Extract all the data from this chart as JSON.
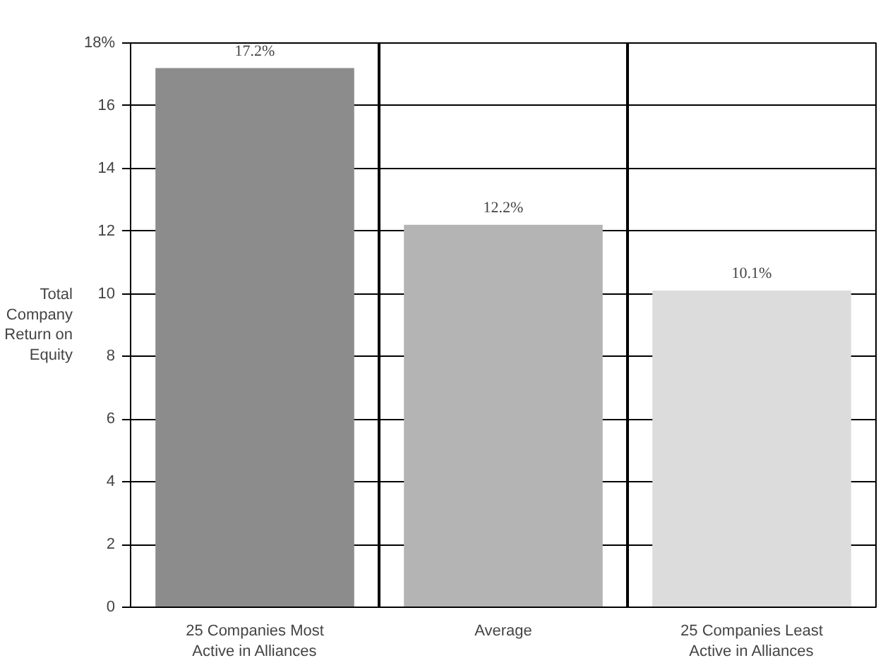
{
  "chart_data": {
    "type": "bar",
    "categories": [
      "25 Companies Most\nActive in Alliances",
      "Average",
      "25 Companies Least\nActive in Alliances"
    ],
    "values": [
      17.2,
      12.2,
      10.1
    ],
    "colors": [
      "#8c8c8c",
      "#b4b4b4",
      "#dcdcdc"
    ],
    "value_labels": [
      "17.2%",
      "12.2%",
      "10.1%"
    ],
    "ylabel": "Total\nCompany\nReturn on\nEquity",
    "ylim": [
      0,
      18
    ],
    "yticks": [
      0,
      2,
      4,
      6,
      8,
      10,
      12,
      14,
      16,
      {
        "value": 18,
        "label": "18%"
      }
    ],
    "grid": true
  }
}
